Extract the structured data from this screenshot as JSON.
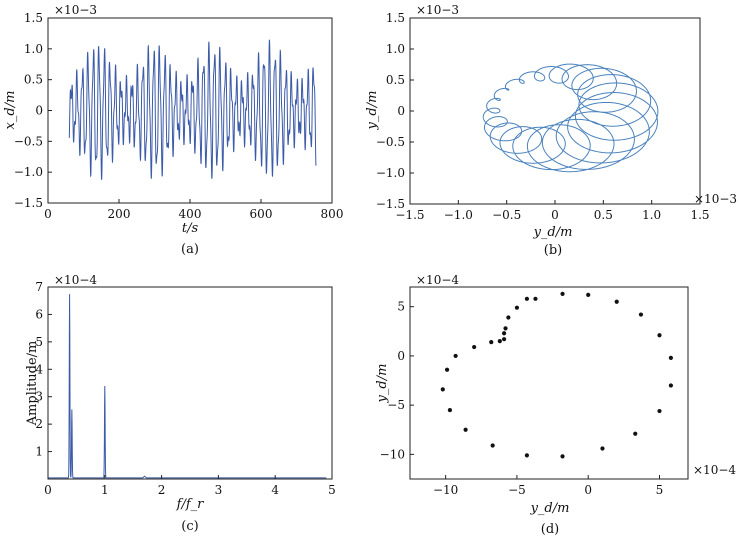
{
  "chart_data": [
    {
      "id": "a",
      "type": "line",
      "caption": "(a)",
      "xlabel": "t/s",
      "ylabel": "x_d/m",
      "xlim": [
        0,
        800
      ],
      "ylim": [
        -1.5,
        1.5
      ],
      "xticks": [
        "0",
        "200",
        "400",
        "600",
        "800"
      ],
      "yticks": [
        "−1.5",
        "−1.0",
        "−0.5",
        "0",
        "0.5",
        "1.0",
        "1.5"
      ],
      "y_multiplier": "×10−3",
      "color": "#3b5aa8",
      "signal": {
        "t_start": 60,
        "t_end": 755,
        "fast_period_s": 15.5,
        "envelope_period_s": 162,
        "peak_amplitude": 1.15
      }
    },
    {
      "id": "b",
      "type": "line",
      "caption": "(b)",
      "xlabel": "y_d/m",
      "ylabel": "y_d/m",
      "xlim": [
        -1.5,
        1.5
      ],
      "ylim": [
        -1.5,
        1.5
      ],
      "xticks": [
        "−1.5",
        "−1.0",
        "−0.5",
        "0",
        "0.5",
        "1.0",
        "1.5"
      ],
      "yticks": [
        "−1.5",
        "−1.0",
        "−0.5",
        "0",
        "0.5",
        "1.0",
        "1.5"
      ],
      "x_multiplier": "×10−3",
      "y_multiplier": "×10−3",
      "color": "#4a82bd",
      "orbit": {
        "major_radius": 0.65,
        "minor_radius_max": 0.45,
        "loops": 20
      }
    },
    {
      "id": "c",
      "type": "line",
      "caption": "(c)",
      "xlabel": "f/f_r",
      "ylabel": "Amplitude/m",
      "xlim": [
        0,
        5
      ],
      "ylim": [
        0,
        7
      ],
      "xticks": [
        "0",
        "1",
        "2",
        "3",
        "4",
        "5"
      ],
      "yticks": [
        "1",
        "2",
        "3",
        "4",
        "5",
        "6",
        "7"
      ],
      "y_multiplier": "×10−4",
      "color": "#3b5aa8",
      "peaks": [
        {
          "f": 0.38,
          "amplitude": 6.7
        },
        {
          "f": 0.42,
          "amplitude": 2.5
        },
        {
          "f": 1.0,
          "amplitude": 3.35
        }
      ]
    },
    {
      "id": "d",
      "type": "scatter",
      "caption": "(d)",
      "xlabel": "y_d/m",
      "ylabel": "y_d/m",
      "xlim": [
        -12.5,
        7
      ],
      "ylim": [
        -12.5,
        7
      ],
      "xticks": [
        "−10",
        "−5",
        "0",
        "5"
      ],
      "yticks": [
        "−10",
        "−5",
        "0",
        "5"
      ],
      "x_multiplier": "×10−4",
      "y_multiplier": "×10−4",
      "color": "#111111",
      "x": [
        -3.7,
        -1.8,
        0,
        2,
        3.7,
        5,
        5.8,
        5.8,
        5,
        3.3,
        1,
        -1.8,
        -4.3,
        -6.7,
        -8.6,
        -9.7,
        -10.2,
        -9.9,
        -9.3,
        -8,
        -6.8,
        -6.2,
        -5.9,
        -5.9,
        -5.8,
        -5.6,
        -5,
        -4.3
      ],
      "y": [
        5.8,
        6.3,
        6.2,
        5.5,
        4.2,
        2.1,
        -0.2,
        -3,
        -5.6,
        -7.9,
        -9.4,
        -10.2,
        -10.1,
        -9.1,
        -7.5,
        -5.5,
        -3.4,
        -1.4,
        0,
        0.9,
        1.4,
        1.5,
        1.7,
        2.3,
        2.8,
        3.9,
        4.9,
        5.8
      ]
    }
  ]
}
